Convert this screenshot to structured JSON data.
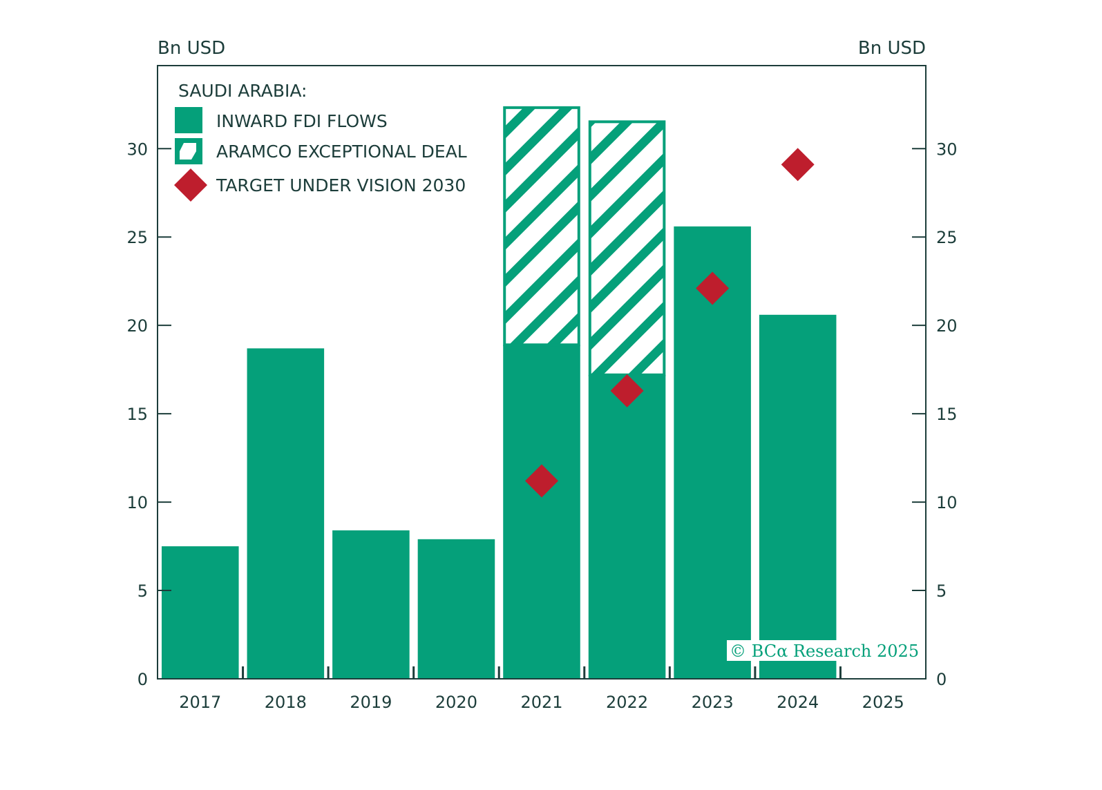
{
  "chart_data": {
    "type": "bar",
    "categories": [
      "2017",
      "2018",
      "2019",
      "2020",
      "2021",
      "2022",
      "2023",
      "2024",
      "2025"
    ],
    "series": [
      {
        "name": "INWARD FDI FLOWS",
        "kind": "bar",
        "color": "#05a07a",
        "values": [
          7.5,
          18.7,
          8.4,
          7.9,
          18.9,
          17.2,
          25.6,
          20.6,
          null
        ]
      },
      {
        "name": "ARAMCO EXCEPTIONAL DEAL",
        "kind": "stacked-hatched-bar",
        "color": "#05a07a",
        "values": [
          null,
          null,
          null,
          null,
          13.5,
          14.4,
          null,
          null,
          null
        ]
      },
      {
        "name": "TARGET UNDER VISION 2030",
        "kind": "diamond-marker",
        "color": "#be1e2d",
        "values": [
          null,
          null,
          null,
          null,
          11.2,
          16.3,
          22.1,
          29.1,
          null
        ]
      }
    ],
    "legend_title": "SAUDI ARABIA:",
    "legend_position": "top-left",
    "ylabel_left": "Bn USD",
    "ylabel_right": "Bn USD",
    "ylim": [
      0,
      34.7
    ],
    "yticks": [
      0,
      5,
      10,
      15,
      20,
      25,
      30
    ],
    "grid": false
  },
  "credit": "© BCα Research 2025",
  "colors": {
    "text": "#1c3d3a",
    "bar": "#05a07a",
    "target": "#be1e2d"
  }
}
